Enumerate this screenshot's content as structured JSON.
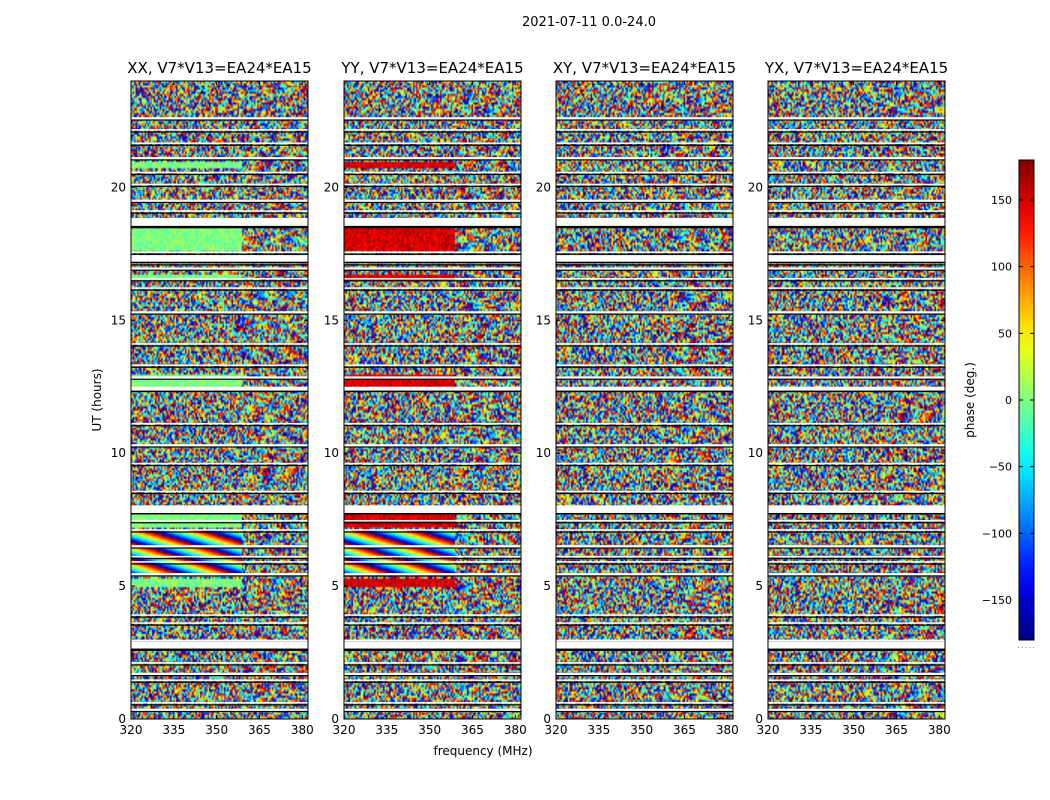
{
  "chart_data": {
    "type": "heatmap",
    "suptitle": "2021-07-11 0.0-24.0",
    "xlabel": "frequency (MHz)",
    "ylabel": "UT (hours)",
    "xlim": [
      320,
      382
    ],
    "ylim": [
      0,
      24
    ],
    "xticks": [
      320,
      335,
      350,
      365,
      380
    ],
    "yticks": [
      0,
      5,
      10,
      15,
      20
    ],
    "panels": [
      {
        "title": "XX, V7*V13=EA24*EA15",
        "coherent_phase_deg": 0
      },
      {
        "title": "YY, V7*V13=EA24*EA15",
        "coherent_phase_deg": 150
      },
      {
        "title": "XY, V7*V13=EA24*EA15",
        "coherent_phase_deg": null
      },
      {
        "title": "YX, V7*V13=EA24*EA15",
        "coherent_phase_deg": null
      }
    ],
    "colorbar": {
      "label": "phase (deg.)",
      "range": [
        -180,
        180
      ],
      "ticks": [
        -150,
        -100,
        -50,
        0,
        50,
        100,
        150
      ],
      "colormap": "jet"
    },
    "flagged_rows_ut": [
      0.35,
      0.6,
      1.45,
      1.7,
      2.1,
      2.65,
      2.95,
      3.6,
      3.9,
      5.45,
      5.9,
      6.1,
      6.5,
      7.1,
      7.45,
      8.0,
      8.55,
      9.6,
      10.3,
      11.1,
      12.4,
      12.85,
      13.3,
      14.1,
      15.3,
      16.2,
      16.55,
      16.95,
      17.15,
      17.55,
      18.55,
      18.75,
      19.1,
      19.5,
      20.1,
      20.55,
      21.1,
      21.65,
      22.15,
      22.6
    ],
    "wide_gaps_ut": [
      [
        2.65,
        2.9
      ],
      [
        17.2,
        17.45
      ],
      [
        18.55,
        18.85
      ],
      [
        7.75,
        8.0
      ],
      [
        12.35,
        12.5
      ]
    ],
    "coherent_bands_ut": [
      [
        4.95,
        5.3
      ],
      [
        5.35,
        7.1
      ],
      [
        7.2,
        7.75
      ],
      [
        12.5,
        12.95
      ],
      [
        16.45,
        16.75
      ],
      [
        17.6,
        18.45
      ],
      [
        20.75,
        20.95
      ]
    ]
  }
}
